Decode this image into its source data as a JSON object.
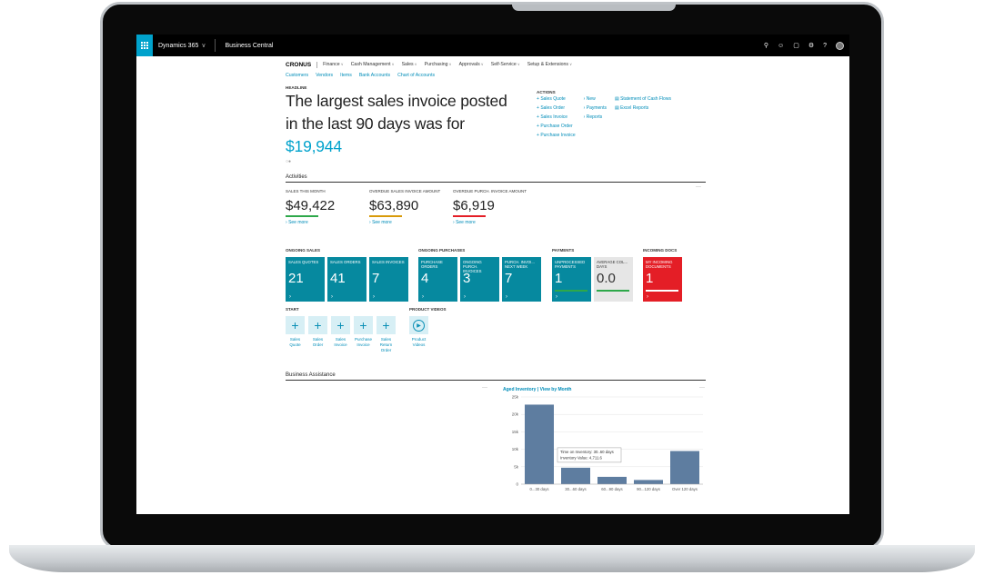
{
  "topbar": {
    "product": "Dynamics 365",
    "app": "Business Central"
  },
  "nav": {
    "company": "CRONUS",
    "items": [
      "Finance",
      "Cash Management",
      "Sales",
      "Purchasing",
      "Approvals",
      "Self-Service",
      "Setup & Extensions"
    ],
    "subitems": [
      "Customers",
      "Vendors",
      "Items",
      "Bank Accounts",
      "Chart of Accounts"
    ]
  },
  "headline": {
    "label": "HEADLINE",
    "text": "The largest sales invoice posted in the last 90 days was for",
    "amount": "$19,944"
  },
  "actions": {
    "label": "ACTIONS",
    "col1": [
      "Sales Quote",
      "Sales Order",
      "Sales Invoice",
      "Purchase Order",
      "Purchase Invoice"
    ],
    "col2": [
      "New",
      "Payments",
      "Reports"
    ],
    "col3": [
      "Statement of Cash Flows",
      "Excel Reports"
    ]
  },
  "activities": {
    "title": "Activities",
    "kpis": [
      {
        "label": "SALES THIS MONTH",
        "value": "$49,422",
        "color": "#2ea84a",
        "more": "See more"
      },
      {
        "label": "OVERDUE SALES INVOICE AMOUNT",
        "value": "$63,890",
        "color": "#d89a0a",
        "more": "See more"
      },
      {
        "label": "OVERDUE PURCH. INVOICE AMOUNT",
        "value": "$6,919",
        "color": "#e41e26",
        "more": "See more"
      }
    ],
    "ongoing_sales": {
      "label": "ONGOING SALES",
      "tiles": [
        {
          "label": "SALES QUOTES",
          "value": "21"
        },
        {
          "label": "SALES ORDERS",
          "value": "41"
        },
        {
          "label": "SALES INVOICES",
          "value": "7"
        }
      ]
    },
    "ongoing_purchases": {
      "label": "ONGOING PURCHASES",
      "tiles": [
        {
          "label": "PURCHASE ORDERS",
          "value": "4"
        },
        {
          "label": "ONGOING PURCH. INVOICES",
          "value": "3"
        },
        {
          "label": "PURCH. INVOI... NEXT WEEK",
          "value": "7"
        }
      ]
    },
    "payments": {
      "label": "PAYMENTS",
      "tiles": [
        {
          "label": "UNPROCESSED PAYMENTS",
          "value": "1"
        },
        {
          "label": "AVERAGE COL... DAYS",
          "value": "0.0"
        }
      ]
    },
    "incoming": {
      "label": "INCOMING DOCS",
      "tiles": [
        {
          "label": "MY INCOMING DOCUMENTS",
          "value": "1"
        }
      ]
    },
    "start": {
      "label": "START",
      "buttons": [
        "Sales Quote",
        "Sales Order",
        "Sales Invoice",
        "Purchase Invoice",
        "Sales Return Order"
      ]
    },
    "videos": {
      "label": "PRODUCT VIDEOS",
      "button": "Product Videos"
    }
  },
  "assistance": {
    "title": "Business Assistance"
  },
  "chart_data": {
    "type": "bar",
    "title": "Aged Inventory | View by Month",
    "categories": [
      "0...30 days",
      "30...60 days",
      "60...90 days",
      "90...120 days",
      "Over 120 days"
    ],
    "values": [
      22800,
      4712,
      2100,
      1200,
      9500
    ],
    "yticks": [
      "0",
      "5k",
      "10k",
      "15k",
      "20k",
      "25k"
    ],
    "ylim": [
      0,
      25000
    ],
    "color": "#5e7da0",
    "tooltip": {
      "line1": "Time on Inventory: 30..60 days",
      "line2": "Inventory Value: 4,711.6"
    }
  }
}
